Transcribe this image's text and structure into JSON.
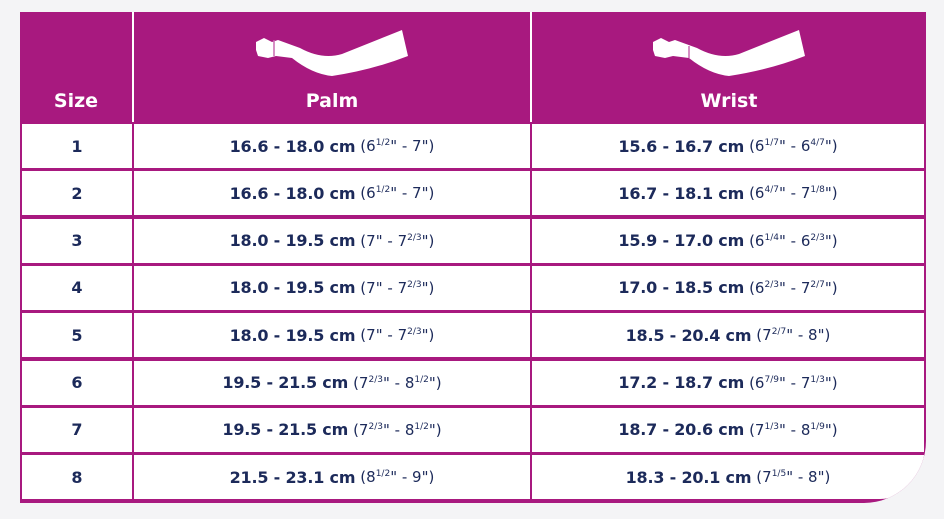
{
  "colors": {
    "header_bg": "#a8197f",
    "text": "#1c2a5a",
    "background": "#f4f4f6"
  },
  "header": {
    "size": "Size",
    "palm": "Palm",
    "wrist": "Wrist",
    "palm_icon": "arm-palm-icon",
    "wrist_icon": "arm-wrist-icon"
  },
  "rows": [
    {
      "size": "1",
      "palm": {
        "cm": "16.6 - 18.0 cm",
        "a": "6",
        "af": "1/2",
        "b": "7",
        "bf": ""
      },
      "wrist": {
        "cm": "15.6 - 16.7 cm",
        "a": "6",
        "af": "1/7",
        "b": "6",
        "bf": "4/7"
      }
    },
    {
      "size": "2",
      "palm": {
        "cm": "16.6 - 18.0 cm",
        "a": "6",
        "af": "1/2",
        "b": "7",
        "bf": ""
      },
      "wrist": {
        "cm": "16.7 - 18.1 cm",
        "a": "6",
        "af": "4/7",
        "b": "7",
        "bf": "1/8"
      }
    },
    {
      "size": "3",
      "palm": {
        "cm": "18.0 - 19.5 cm",
        "a": "7",
        "af": "",
        "b": "7",
        "bf": "2/3"
      },
      "wrist": {
        "cm": "15.9 - 17.0 cm",
        "a": "6",
        "af": "1/4",
        "b": "6",
        "bf": "2/3"
      }
    },
    {
      "size": "4",
      "palm": {
        "cm": "18.0 - 19.5 cm",
        "a": "7",
        "af": "",
        "b": "7",
        "bf": "2/3"
      },
      "wrist": {
        "cm": "17.0 - 18.5 cm",
        "a": "6",
        "af": "2/3",
        "b": "7",
        "bf": "2/7"
      }
    },
    {
      "size": "5",
      "palm": {
        "cm": "18.0 - 19.5 cm",
        "a": "7",
        "af": "",
        "b": "7",
        "bf": "2/3"
      },
      "wrist": {
        "cm": "18.5 - 20.4 cm",
        "a": "7",
        "af": "2/7",
        "b": "8",
        "bf": ""
      }
    },
    {
      "size": "6",
      "palm": {
        "cm": "19.5 - 21.5 cm",
        "a": "7",
        "af": "2/3",
        "b": "8",
        "bf": "1/2"
      },
      "wrist": {
        "cm": "17.2 - 18.7 cm",
        "a": "6",
        "af": "7/9",
        "b": "7",
        "bf": "1/3"
      }
    },
    {
      "size": "7",
      "palm": {
        "cm": "19.5 - 21.5 cm",
        "a": "7",
        "af": "2/3",
        "b": "8",
        "bf": "1/2"
      },
      "wrist": {
        "cm": "18.7 - 20.6 cm",
        "a": "7",
        "af": "1/3",
        "b": "8",
        "bf": "1/9"
      }
    },
    {
      "size": "8",
      "palm": {
        "cm": "21.5 - 23.1 cm",
        "a": "8",
        "af": "1/2",
        "b": "9",
        "bf": ""
      },
      "wrist": {
        "cm": "18.3 - 20.1 cm",
        "a": "7",
        "af": "1/5",
        "b": "8",
        "bf": ""
      }
    }
  ]
}
